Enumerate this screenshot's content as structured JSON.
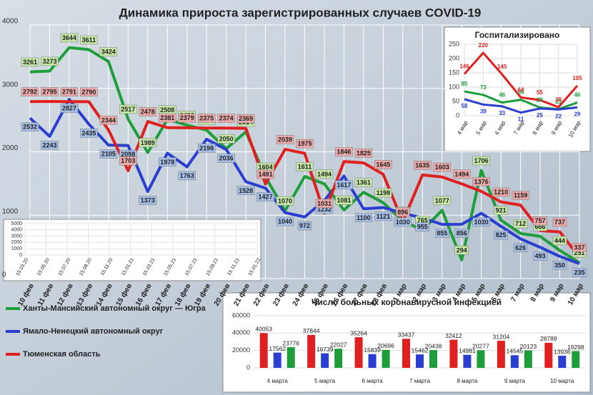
{
  "chart_data": [
    {
      "type": "line",
      "title": "Динамика прироста зарегистрированных случаев COVID-19",
      "categories": [
        "10 фев",
        "11 фев",
        "12 фев",
        "13 фев",
        "14 фев",
        "15 фев",
        "16 фев",
        "17 фев",
        "18 фев",
        "19 фев",
        "20 фев",
        "21 фев",
        "22 фев",
        "23 фев",
        "24 фев",
        "25 фев",
        "26 фев",
        "27 фев",
        "28 фев",
        "1 мар",
        "2 мар",
        "3 мар",
        "4 мар",
        "5 мар",
        "6 мар",
        "7 мар",
        "8 мар",
        "9 мар",
        "10 мар"
      ],
      "series": [
        {
          "name": "Ханты-Мансийский автономный округ — Югра",
          "color": "#1e9e3a",
          "values": [
            3261,
            3273,
            3644,
            3611,
            3424,
            2517,
            1989,
            2508,
            2422,
            2341,
            2050,
            2314,
            1604,
            1070,
            1611,
            1494,
            1081,
            1361,
            1198,
            906,
            765,
            1077,
            294,
            1706,
            921,
            712,
            666,
            444,
            251
          ]
        },
        {
          "name": "Ямало-Ненецкий автономный округ",
          "color": "#2a3fd0",
          "values": [
            2532,
            2243,
            2827,
            2435,
            2105,
            2098,
            1373,
            1978,
            1763,
            2198,
            2036,
            1528,
            1427,
            1040,
            972,
            1232,
            1617,
            1100,
            1121,
            1030,
            955,
            855,
            856,
            1030,
            825,
            626,
            493,
            350,
            235
          ]
        },
        {
          "name": "Тюменская область",
          "color": "#e02020",
          "values": [
            2792,
            2795,
            2791,
            2790,
            2344,
            1703,
            2478,
            2381,
            2379,
            2375,
            2374,
            2369,
            1491,
            2039,
            1975,
            1031,
            1846,
            1825,
            1645,
            896,
            1635,
            1603,
            1494,
            1376,
            1210,
            1159,
            757,
            737,
            337
          ]
        }
      ],
      "ylim": [
        0,
        4000
      ],
      "yticks": [
        0,
        1000,
        2000,
        3000,
        4000
      ],
      "grid": true,
      "legend": "bottom-left"
    },
    {
      "type": "line",
      "title": "Госпитализировано",
      "categories": [
        "4 мар",
        "5 мар",
        "6 мар",
        "7 мар",
        "8 мар",
        "9 мар",
        "10 мар"
      ],
      "series": [
        {
          "color": "#1e9e3a",
          "values": [
            85,
            73,
            46,
            56,
            29,
            23,
            46
          ]
        },
        {
          "color": "#2a3fd0",
          "values": [
            58,
            39,
            33,
            11,
            25,
            22,
            29
          ]
        },
        {
          "color": "#e02020",
          "values": [
            146,
            220,
            145,
            64,
            55,
            30,
            105
          ]
        }
      ],
      "ylim": [
        0,
        250
      ],
      "yticks": [
        0,
        50,
        100,
        150,
        200,
        250
      ],
      "grid": true
    },
    {
      "type": "bar",
      "title": "Число больных  коронавирусной  инфекцией",
      "categories": [
        "4 марта",
        "5 марта",
        "6 марта",
        "7 марта",
        "8 марта",
        "9 марта",
        "10 марта"
      ],
      "series": [
        {
          "color": "#e02020",
          "values": [
            40053,
            37844,
            35264,
            33437,
            32412,
            31204,
            28789
          ]
        },
        {
          "color": "#2a3fd0",
          "values": [
            17562,
            16739,
            15839,
            15462,
            14981,
            14545,
            13936
          ]
        },
        {
          "color": "#1e9e3a",
          "values": [
            23776,
            22027,
            20696,
            20438,
            20277,
            20123,
            19298
          ]
        }
      ],
      "ylim": [
        0,
        60000
      ],
      "yticks": [
        0,
        20000,
        40000,
        60000
      ],
      "grid": true
    },
    {
      "type": "line",
      "categories": [
        "15.03.20",
        "15.05.20",
        "15.07.20",
        "15.09.20",
        "15.11.20",
        "15.01.21",
        "15.03.21",
        "15.05.21",
        "15.07.21",
        "15.09.21",
        "15.11.21",
        "15.01.22"
      ],
      "ylim": [
        0,
        5000
      ],
      "yticks": [
        0,
        1000,
        2000,
        3000,
        4000,
        5000
      ],
      "grid": true
    }
  ]
}
